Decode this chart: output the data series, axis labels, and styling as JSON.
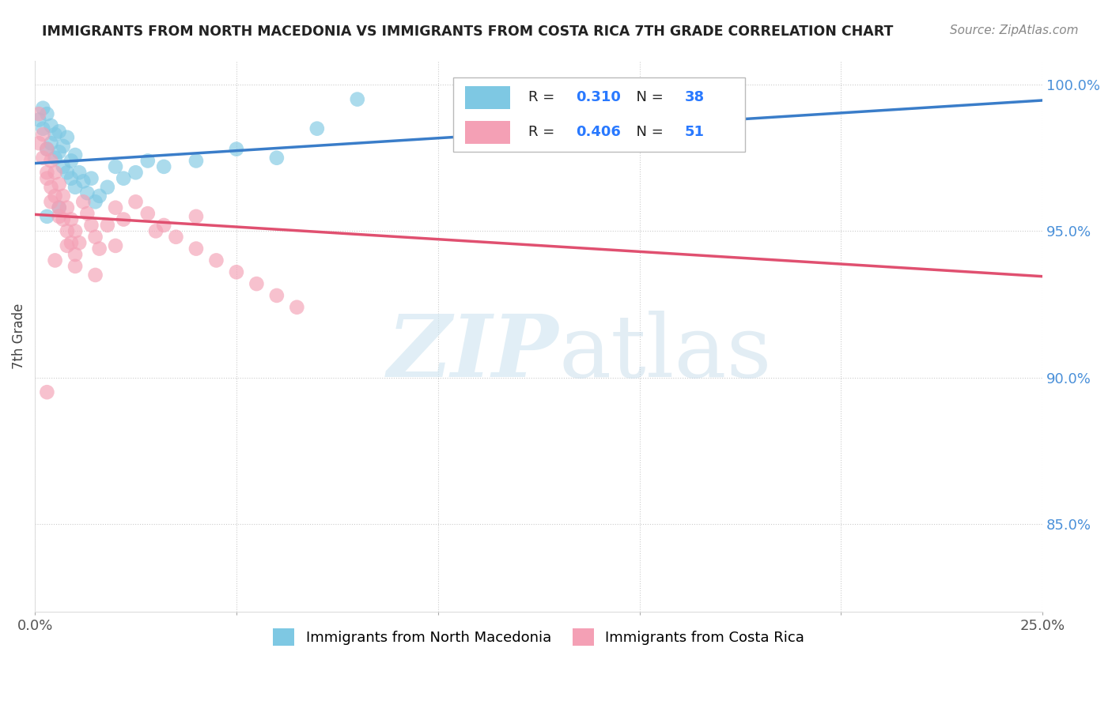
{
  "title": "IMMIGRANTS FROM NORTH MACEDONIA VS IMMIGRANTS FROM COSTA RICA 7TH GRADE CORRELATION CHART",
  "source": "Source: ZipAtlas.com",
  "ylabel": "7th Grade",
  "xlim": [
    0.0,
    0.25
  ],
  "ylim": [
    0.82,
    1.008
  ],
  "xtick_positions": [
    0.0,
    0.05,
    0.1,
    0.15,
    0.2,
    0.25
  ],
  "xtick_labels": [
    "0.0%",
    "",
    "",
    "",
    "",
    "25.0%"
  ],
  "ytick_positions": [
    0.85,
    0.9,
    0.95,
    1.0
  ],
  "ytick_labels": [
    "85.0%",
    "90.0%",
    "95.0%",
    "100.0%"
  ],
  "series1_label": "Immigrants from North Macedonia",
  "series1_color": "#7ec8e3",
  "series1_line_color": "#3a7dc9",
  "series1_R": 0.31,
  "series1_N": 38,
  "series2_label": "Immigrants from Costa Rica",
  "series2_color": "#f4a0b5",
  "series2_line_color": "#e05070",
  "series2_R": 0.406,
  "series2_N": 51,
  "legend_value_color": "#2979ff",
  "background_color": "#ffffff",
  "title_color": "#222222",
  "source_color": "#888888",
  "ylabel_color": "#444444",
  "xtick_color": "#555555",
  "ytick_color": "#4a90d9",
  "grid_color": "#cccccc",
  "series1_x": [
    0.001,
    0.002,
    0.002,
    0.003,
    0.003,
    0.004,
    0.004,
    0.005,
    0.005,
    0.006,
    0.006,
    0.007,
    0.007,
    0.008,
    0.008,
    0.009,
    0.009,
    0.01,
    0.01,
    0.011,
    0.012,
    0.013,
    0.014,
    0.015,
    0.016,
    0.018,
    0.02,
    0.022,
    0.025,
    0.028,
    0.032,
    0.04,
    0.05,
    0.06,
    0.07,
    0.08,
    0.003,
    0.006
  ],
  "series1_y": [
    0.988,
    0.985,
    0.992,
    0.99,
    0.978,
    0.98,
    0.986,
    0.983,
    0.975,
    0.977,
    0.984,
    0.979,
    0.972,
    0.982,
    0.97,
    0.974,
    0.968,
    0.976,
    0.965,
    0.97,
    0.967,
    0.963,
    0.968,
    0.96,
    0.962,
    0.965,
    0.972,
    0.968,
    0.97,
    0.974,
    0.972,
    0.974,
    0.978,
    0.975,
    0.985,
    0.995,
    0.955,
    0.958
  ],
  "series2_x": [
    0.001,
    0.001,
    0.002,
    0.002,
    0.003,
    0.003,
    0.004,
    0.004,
    0.005,
    0.005,
    0.006,
    0.006,
    0.007,
    0.007,
    0.008,
    0.008,
    0.009,
    0.009,
    0.01,
    0.01,
    0.011,
    0.012,
    0.013,
    0.014,
    0.015,
    0.016,
    0.018,
    0.02,
    0.022,
    0.025,
    0.028,
    0.032,
    0.035,
    0.04,
    0.045,
    0.05,
    0.055,
    0.06,
    0.065,
    0.005,
    0.003,
    0.004,
    0.006,
    0.008,
    0.01,
    0.015,
    0.02,
    0.03,
    0.04,
    0.13,
    0.003
  ],
  "series2_y": [
    0.99,
    0.98,
    0.983,
    0.975,
    0.978,
    0.97,
    0.974,
    0.965,
    0.97,
    0.962,
    0.966,
    0.958,
    0.962,
    0.954,
    0.958,
    0.95,
    0.954,
    0.946,
    0.95,
    0.942,
    0.946,
    0.96,
    0.956,
    0.952,
    0.948,
    0.944,
    0.952,
    0.958,
    0.954,
    0.96,
    0.956,
    0.952,
    0.948,
    0.944,
    0.94,
    0.936,
    0.932,
    0.928,
    0.924,
    0.94,
    0.968,
    0.96,
    0.955,
    0.945,
    0.938,
    0.935,
    0.945,
    0.95,
    0.955,
    0.995,
    0.895
  ]
}
